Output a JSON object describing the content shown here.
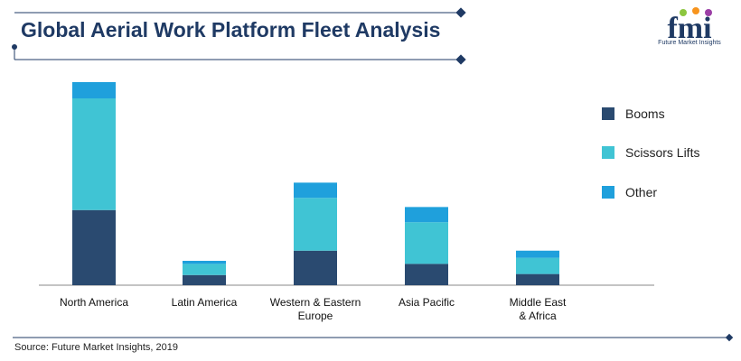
{
  "header": {
    "title": "Global Aerial Work Platform Fleet Analysis"
  },
  "logo": {
    "text": "fmi",
    "subtitle": "Future Market Insights"
  },
  "footer": {
    "source": "Source: Future Market Insights, 2019"
  },
  "colors": {
    "title": "#1f3a64",
    "booms": "#2a4a70",
    "scissors": "#40c4d4",
    "other": "#1fa0dc",
    "accent_line": "#1f3a64"
  },
  "chart_data": {
    "type": "bar",
    "stacked": true,
    "title": "Global Aerial Work Platform Fleet Analysis",
    "categories": [
      "North America",
      "Latin America",
      "Western & Eastern Europe",
      "Asia Pacific",
      "Middle East & Africa"
    ],
    "category_lines": [
      [
        "North America"
      ],
      [
        "Latin America"
      ],
      [
        "Western & Eastern",
        "Europe"
      ],
      [
        "Asia Pacific"
      ],
      [
        "Middle East",
        "& Africa"
      ]
    ],
    "series": [
      {
        "name": "Booms",
        "values": [
          37,
          5,
          17,
          10.5,
          5.5
        ]
      },
      {
        "name": "Scissors Lifts",
        "values": [
          55,
          5.5,
          26,
          20.5,
          8
        ]
      },
      {
        "name": "Other",
        "values": [
          8,
          1.5,
          7.5,
          7.5,
          3.5
        ]
      }
    ],
    "ylim": [
      0,
      100
    ],
    "grid": false,
    "legend_position": "right"
  }
}
